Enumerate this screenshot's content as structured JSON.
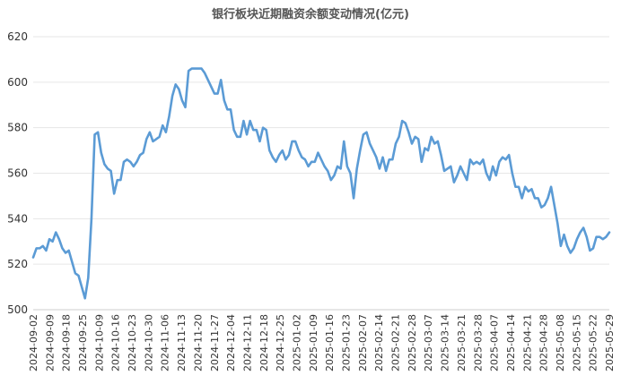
{
  "chart_data": {
    "type": "line",
    "title": "银行板块近期融资余额变动情况(亿元)",
    "xlabel": "",
    "ylabel": "",
    "ylim": [
      500,
      620
    ],
    "y_ticks": [
      500,
      520,
      540,
      560,
      580,
      600,
      620
    ],
    "grid": true,
    "legend": "none",
    "line_color": "#5b9bd5",
    "x_ticks": [
      "2024-09-02",
      "2024-09-09",
      "2024-09-18",
      "2024-09-25",
      "2024-10-09",
      "2024-10-16",
      "2024-10-23",
      "2024-10-30",
      "2024-11-06",
      "2024-11-13",
      "2024-11-20",
      "2024-11-27",
      "2024-12-04",
      "2024-12-11",
      "2024-12-18",
      "2024-12-25",
      "2025-01-02",
      "2025-01-09",
      "2025-01-16",
      "2025-01-23",
      "2025-02-07",
      "2025-02-14",
      "2025-02-21",
      "2025-02-28",
      "2025-03-07",
      "2025-03-14",
      "2025-03-21",
      "2025-03-28",
      "2025-04-07",
      "2025-04-14",
      "2025-04-21",
      "2025-04-28",
      "2025-05-08",
      "2025-05-15",
      "2025-05-22",
      "2025-05-29"
    ],
    "series": [
      {
        "values": [
          523,
          527,
          527,
          528,
          526,
          531,
          530,
          534,
          531,
          527,
          525,
          526,
          521,
          516,
          515,
          510,
          505,
          514,
          540,
          577,
          578,
          569,
          564,
          562,
          561,
          551,
          557,
          557,
          565,
          566,
          565,
          563,
          565,
          568,
          569,
          575,
          578,
          574,
          575,
          576,
          581,
          578,
          585,
          594,
          599,
          597,
          592,
          589,
          605,
          606,
          606,
          606,
          606,
          604,
          601,
          598,
          595,
          595,
          601,
          592,
          588,
          588,
          579,
          576,
          576,
          583,
          577,
          583,
          579,
          579,
          574,
          580,
          579,
          570,
          567,
          565,
          568,
          570,
          566,
          568,
          574,
          574,
          570,
          567,
          566,
          563,
          565,
          565,
          569,
          566,
          563,
          561,
          557,
          559,
          563,
          562,
          574,
          563,
          560,
          549,
          562,
          570,
          577,
          578,
          573,
          570,
          567,
          562,
          567,
          561,
          566,
          566,
          573,
          576,
          583,
          582,
          578,
          573,
          576,
          575,
          565,
          571,
          570,
          576,
          573,
          574,
          568,
          561,
          562,
          563,
          556,
          559,
          563,
          560,
          557,
          566,
          564,
          565,
          564,
          566,
          560,
          557,
          563,
          559,
          565,
          567,
          566,
          568,
          560,
          554,
          554,
          549,
          554,
          552,
          553,
          549,
          549,
          545,
          546,
          549,
          554,
          546,
          538,
          528,
          533,
          528,
          525,
          527,
          531,
          534,
          536,
          532,
          526,
          527,
          532,
          532,
          531,
          532,
          534
        ]
      }
    ]
  }
}
